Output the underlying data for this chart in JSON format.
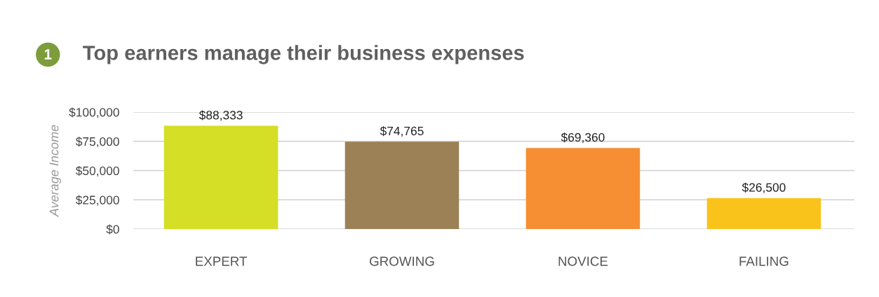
{
  "chart_data": {
    "type": "bar",
    "title": "Top earners manage their business expenses",
    "ylabel": "Average Income",
    "categories": [
      "EXPERT",
      "GROWING",
      "NOVICE",
      "FAILING"
    ],
    "values": [
      88333,
      74765,
      69360,
      26500
    ],
    "colors": [
      "#d4df26",
      "#9c8156",
      "#f68f33",
      "#f9c31b"
    ],
    "ylim": [
      0,
      100000
    ],
    "yticks": [
      {
        "value": 0,
        "label": "$0"
      },
      {
        "value": 25000,
        "label": "$25,000"
      },
      {
        "value": 50000,
        "label": "$50,000"
      },
      {
        "value": 75000,
        "label": "$75,000"
      },
      {
        "value": 100000,
        "label": "$100,000"
      }
    ],
    "value_labels": [
      "$88,333",
      "$74,765",
      "$69,360",
      "$26,500"
    ],
    "annotations": [
      "1"
    ],
    "grid": "y",
    "legend": false
  }
}
